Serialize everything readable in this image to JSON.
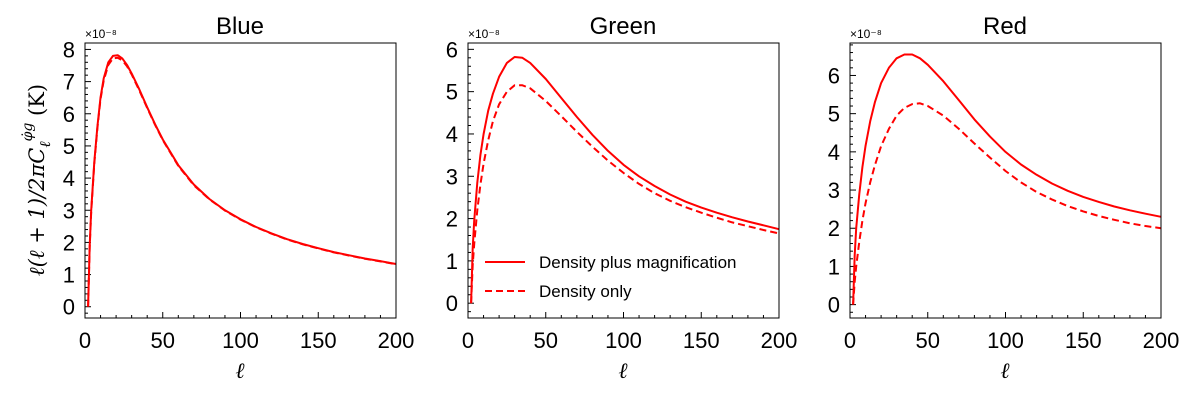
{
  "chart_data": [
    {
      "type": "line",
      "title": "Blue",
      "xlabel": "ℓ",
      "ylabel": "ℓ(ℓ + 1)/2πC_ℓ^{φ̇g} (K)",
      "y_offset_label": "×10⁻⁸",
      "xlim": [
        0,
        200
      ],
      "ylim": [
        -0.35,
        8.2
      ],
      "xticks": [
        0,
        50,
        100,
        150,
        200
      ],
      "yticks": [
        0,
        1,
        2,
        3,
        4,
        5,
        6,
        7,
        8
      ],
      "series": [
        {
          "name": "Density plus magnification",
          "style": "solid",
          "color": "#ff0000",
          "x": [
            2,
            3,
            4,
            6,
            8,
            10,
            12,
            15,
            18,
            21,
            24,
            27,
            30,
            35,
            40,
            45,
            50,
            60,
            70,
            80,
            90,
            100,
            110,
            120,
            130,
            140,
            150,
            160,
            170,
            180,
            190,
            200
          ],
          "y": [
            0,
            1.9,
            3.0,
            4.5,
            5.6,
            6.5,
            7.1,
            7.6,
            7.8,
            7.82,
            7.72,
            7.52,
            7.25,
            6.75,
            6.2,
            5.68,
            5.2,
            4.4,
            3.8,
            3.35,
            3.0,
            2.72,
            2.48,
            2.28,
            2.1,
            1.95,
            1.82,
            1.7,
            1.6,
            1.5,
            1.42,
            1.33
          ]
        },
        {
          "name": "Density only",
          "style": "dashed",
          "color": "#ff0000",
          "x": [
            2,
            3,
            4,
            6,
            8,
            10,
            12,
            15,
            18,
            21,
            24,
            27,
            30,
            35,
            40,
            45,
            50,
            60,
            70,
            80,
            90,
            100,
            110,
            120,
            130,
            140,
            150,
            160,
            170,
            180,
            190,
            200
          ],
          "y": [
            0,
            1.85,
            2.95,
            4.45,
            5.55,
            6.45,
            7.03,
            7.52,
            7.72,
            7.74,
            7.66,
            7.48,
            7.22,
            6.72,
            6.18,
            5.66,
            5.18,
            4.38,
            3.78,
            3.34,
            2.99,
            2.71,
            2.47,
            2.27,
            2.09,
            1.94,
            1.81,
            1.69,
            1.59,
            1.49,
            1.41,
            1.32
          ]
        }
      ]
    },
    {
      "type": "line",
      "title": "Green",
      "xlabel": "ℓ",
      "y_offset_label": "×10⁻⁸",
      "xlim": [
        0,
        200
      ],
      "ylim": [
        -0.35,
        6.15
      ],
      "xticks": [
        0,
        50,
        100,
        150,
        200
      ],
      "yticks": [
        0,
        1,
        2,
        3,
        4,
        5,
        6
      ],
      "legend": {
        "placement": "lower-left",
        "entries": [
          {
            "label": "Density plus magnification",
            "style": "solid"
          },
          {
            "label": "Density only",
            "style": "dashed"
          }
        ]
      },
      "series": [
        {
          "name": "Density plus magnification",
          "style": "solid",
          "color": "#ff0000",
          "x": [
            2,
            3,
            4,
            6,
            8,
            10,
            13,
            16,
            20,
            25,
            30,
            35,
            40,
            50,
            60,
            70,
            80,
            90,
            100,
            110,
            120,
            130,
            140,
            150,
            160,
            170,
            180,
            190,
            200
          ],
          "y": [
            0,
            1.3,
            1.95,
            2.85,
            3.5,
            4.0,
            4.55,
            4.95,
            5.35,
            5.68,
            5.82,
            5.8,
            5.68,
            5.3,
            4.85,
            4.4,
            3.98,
            3.6,
            3.27,
            3.0,
            2.77,
            2.57,
            2.4,
            2.26,
            2.14,
            2.03,
            1.93,
            1.84,
            1.75
          ]
        },
        {
          "name": "Density only",
          "style": "dashed",
          "color": "#ff0000",
          "x": [
            2,
            3,
            4,
            6,
            8,
            10,
            13,
            16,
            20,
            25,
            30,
            35,
            40,
            50,
            60,
            70,
            80,
            90,
            100,
            110,
            120,
            130,
            140,
            150,
            160,
            170,
            180,
            190,
            200
          ],
          "y": [
            0,
            0.9,
            1.4,
            2.2,
            2.8,
            3.3,
            3.85,
            4.3,
            4.7,
            5.0,
            5.15,
            5.15,
            5.08,
            4.78,
            4.42,
            4.05,
            3.7,
            3.37,
            3.08,
            2.82,
            2.6,
            2.42,
            2.27,
            2.14,
            2.02,
            1.91,
            1.82,
            1.73,
            1.65
          ]
        }
      ]
    },
    {
      "type": "line",
      "title": "Red",
      "xlabel": "ℓ",
      "y_offset_label": "×10⁻⁸",
      "xlim": [
        0,
        200
      ],
      "ylim": [
        -0.35,
        6.85
      ],
      "xticks": [
        0,
        50,
        100,
        150,
        200
      ],
      "yticks": [
        0,
        1,
        2,
        3,
        4,
        5,
        6
      ],
      "series": [
        {
          "name": "Density plus magnification",
          "style": "solid",
          "color": "#ff0000",
          "x": [
            2,
            3,
            4,
            6,
            8,
            10,
            13,
            16,
            20,
            25,
            30,
            35,
            40,
            45,
            50,
            60,
            70,
            80,
            90,
            100,
            110,
            120,
            130,
            140,
            150,
            160,
            170,
            180,
            190,
            200
          ],
          "y": [
            0,
            1.3,
            2.0,
            2.9,
            3.6,
            4.15,
            4.8,
            5.3,
            5.8,
            6.2,
            6.45,
            6.55,
            6.55,
            6.45,
            6.28,
            5.85,
            5.35,
            4.85,
            4.4,
            4.0,
            3.67,
            3.4,
            3.17,
            2.98,
            2.82,
            2.69,
            2.57,
            2.47,
            2.38,
            2.3
          ]
        },
        {
          "name": "Density only",
          "style": "dashed",
          "color": "#ff0000",
          "x": [
            2,
            3,
            4,
            6,
            8,
            10,
            13,
            16,
            20,
            25,
            30,
            35,
            40,
            45,
            50,
            60,
            70,
            80,
            90,
            100,
            110,
            120,
            130,
            140,
            150,
            160,
            170,
            180,
            190,
            200
          ],
          "y": [
            0,
            0.6,
            1.0,
            1.65,
            2.2,
            2.65,
            3.2,
            3.65,
            4.15,
            4.6,
            4.95,
            5.15,
            5.25,
            5.27,
            5.2,
            4.95,
            4.6,
            4.22,
            3.85,
            3.5,
            3.2,
            2.95,
            2.75,
            2.58,
            2.44,
            2.32,
            2.22,
            2.13,
            2.06,
            2.0
          ]
        }
      ]
    }
  ]
}
